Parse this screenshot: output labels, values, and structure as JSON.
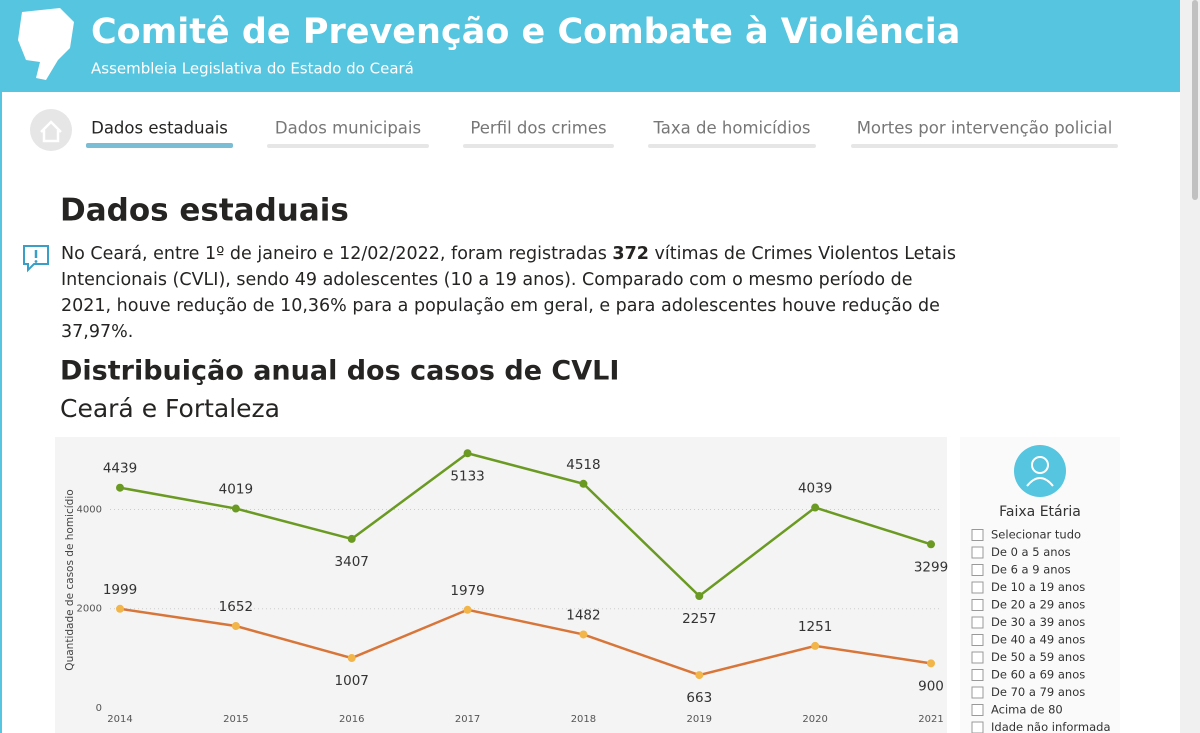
{
  "header": {
    "title": "Comitê de Prevenção e Combate à Violência",
    "subtitle": "Assembleia Legislativa do Estado do Ceará"
  },
  "nav": [
    "Dados estaduais",
    "Dados municipais",
    "Perfil dos crimes",
    "Taxa de homicídios",
    "Mortes por intervenção policial"
  ],
  "section": {
    "heading": "Dados estaduais",
    "paragraph": [
      "No Ceará, entre 1º de janeiro e 12/02/2022, foram registradas ",
      "372",
      " vítimas de Crimes Violentos Letais Intencionais (CVLI), sendo 49 adolescentes (10 a 19 anos). Comparado com o mesmo período de 2021, houve redução de 10,36% para a população em geral, e para adolescentes houve redução de 37,97%."
    ]
  },
  "chart_data": {
    "type": "line",
    "title": "Distribuição anual dos casos de CVLI",
    "subtitle": "Ceará e Fortaleza",
    "y_label": "Quantidade de casos de homicídio",
    "categories": [
      "2014",
      "2015",
      "2016",
      "2017",
      "2018",
      "2019",
      "2020",
      "2021"
    ],
    "series": [
      {
        "color": "#6a9a22",
        "marker_color": "#6a9a22",
        "values": [
          4439,
          4019,
          3407,
          5133,
          4518,
          2257,
          4039,
          3299
        ]
      },
      {
        "color": "#d8763a",
        "marker_color": "#f2b54a",
        "values": [
          1999,
          1652,
          1007,
          1979,
          1482,
          663,
          1251,
          900
        ]
      }
    ],
    "ylim": [
      0,
      5400
    ],
    "yticks": [
      0,
      2000,
      4000
    ],
    "grid": true
  },
  "filter": {
    "title": "Faixa Etária",
    "options": [
      "Selecionar tudo",
      "De 0 a 5 anos",
      "De 6 a 9 anos",
      "De 10 a 19 anos",
      "De 20 a 29 anos",
      "De 30 a 39 anos",
      "De 40 a 49 anos",
      "De 50 a 59 anos",
      "De 60 a 69 anos",
      "De 70 a 79 anos",
      "Acima de 80",
      "Idade não informada"
    ]
  }
}
